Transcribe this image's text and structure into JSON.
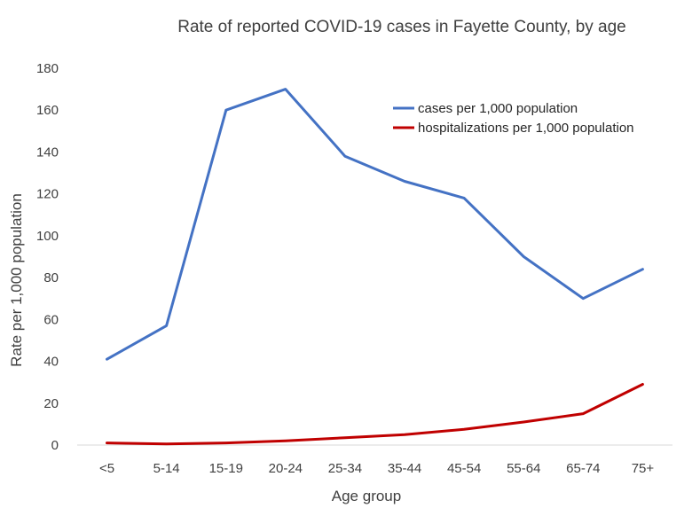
{
  "chart_data": {
    "type": "line",
    "title": "Rate of reported COVID-19 cases in Fayette County, by age",
    "xlabel": "Age group",
    "ylabel": "Rate per 1,000 population",
    "categories": [
      "<5",
      "5-14",
      "15-19",
      "20-24",
      "25-34",
      "35-44",
      "45-54",
      "55-64",
      "65-74",
      "75+"
    ],
    "ylim": [
      0,
      180
    ],
    "yticks": [
      0,
      20,
      40,
      60,
      80,
      100,
      120,
      140,
      160,
      180
    ],
    "grid": false,
    "legend_position": "top-right",
    "series": [
      {
        "name": "cases per 1,000 population",
        "color": "#4472c4",
        "values": [
          41,
          57,
          160,
          170,
          138,
          126,
          118,
          90,
          70,
          84
        ]
      },
      {
        "name": "hospitalizations per 1,000 population",
        "color": "#c00000",
        "values": [
          1,
          0.5,
          1,
          2,
          3.5,
          5,
          7.5,
          11,
          15,
          29
        ]
      }
    ]
  }
}
